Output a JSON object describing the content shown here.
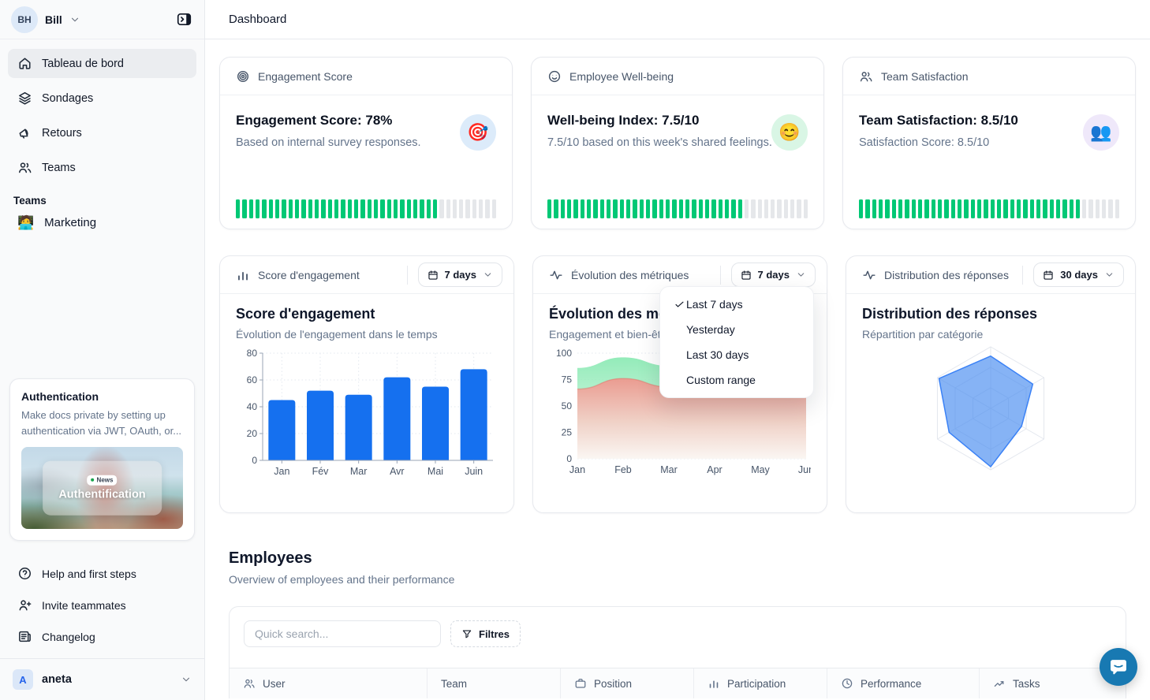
{
  "topbar": {
    "title": "Dashboard"
  },
  "sidebar": {
    "user": {
      "initials": "BH",
      "name": "Bill"
    },
    "nav": [
      {
        "label": "Tableau de bord",
        "icon": "home",
        "active": true
      },
      {
        "label": "Sondages",
        "icon": "layers",
        "active": false
      },
      {
        "label": "Retours",
        "icon": "megaphone",
        "active": false
      },
      {
        "label": "Teams",
        "icon": "users",
        "active": false
      }
    ],
    "section_label": "Teams",
    "teams": [
      {
        "label": "Marketing",
        "emoji": "🧑‍💻"
      }
    ],
    "promo": {
      "title": "Authentication",
      "body": "Make docs private by setting up authentication via JWT, OAuth, or...",
      "badge": "News",
      "caption": "Authentification"
    },
    "footer_nav": [
      {
        "label": "Help and first steps",
        "icon": "help"
      },
      {
        "label": "Invite teammates",
        "icon": "user-plus"
      },
      {
        "label": "Changelog",
        "icon": "changelog"
      }
    ],
    "workspace": {
      "initial": "A",
      "name": "aneta"
    }
  },
  "stat_cards": [
    {
      "header": "Engagement Score",
      "header_icon": "target",
      "title": "Engagement Score: 78%",
      "subtitle": "Based on internal survey responses.",
      "emoji": "🎯",
      "emoji_bg": "#dcebfa",
      "progress": 78
    },
    {
      "header": "Employee Well-being",
      "header_icon": "smile",
      "title": "Well-being Index: 7.5/10",
      "subtitle": "7.5/10 based on this week's shared feelings.",
      "emoji": "😊",
      "emoji_bg": "#d9f6e5",
      "progress": 75
    },
    {
      "header": "Team Satisfaction",
      "header_icon": "users",
      "title": "Team Satisfaction: 8.5/10",
      "subtitle": "Satisfaction Score: 8.5/10",
      "emoji": "👥",
      "emoji_bg": "#efe8fa",
      "progress": 85
    }
  ],
  "progress_color": "#00c875",
  "progress_track_color": "#e5e7ea",
  "chart_cards": [
    {
      "header": "Score d'engagement",
      "header_icon": "bar-chart",
      "range": "7 days",
      "title": "Score d'engagement",
      "subtitle": "Évolution de l'engagement dans le temps"
    },
    {
      "header": "Évolution des métriques",
      "header_icon": "activity",
      "range": "7 days",
      "title": "Évolution des métriques",
      "subtitle": "Engagement et bien-être"
    },
    {
      "header": "Distribution des réponses",
      "header_icon": "activity",
      "range": "30 days",
      "title": "Distribution des réponses",
      "subtitle": "Répartition par catégorie"
    }
  ],
  "dropdown_menu": {
    "items": [
      {
        "label": "Last 7 days",
        "checked": true
      },
      {
        "label": "Yesterday",
        "checked": false
      },
      {
        "label": "Last 30 days",
        "checked": false
      },
      {
        "label": "Custom range",
        "checked": false
      }
    ]
  },
  "chart_data": [
    {
      "type": "bar",
      "title": "Score d'engagement",
      "categories": [
        "Jan",
        "Fév",
        "Mar",
        "Avr",
        "Mai",
        "Juin"
      ],
      "values": [
        45,
        52,
        49,
        62,
        55,
        68
      ],
      "ylim": [
        0,
        80
      ],
      "yticks": [
        0,
        20,
        40,
        60,
        80
      ],
      "bar_color": "#1570EF",
      "grid": true
    },
    {
      "type": "area",
      "title": "Évolution des métriques",
      "x": [
        "Jan",
        "Feb",
        "Mar",
        "Apr",
        "May",
        "Jun"
      ],
      "series": [
        {
          "name": "engagement",
          "color": "#8deab5",
          "values": [
            86,
            96,
            88,
            67,
            72,
            75
          ]
        },
        {
          "name": "bien-être",
          "color": "#f0988f",
          "values": [
            66,
            76,
            68,
            60,
            66,
            62
          ]
        }
      ],
      "ylim": [
        0,
        100
      ],
      "yticks": [
        0,
        25,
        50,
        75,
        100
      ],
      "grid": true
    },
    {
      "type": "radar",
      "title": "Distribution des réponses",
      "axes": 6,
      "values": [
        0.85,
        0.79,
        0.58,
        0.95,
        0.78,
        0.97
      ],
      "max": 1,
      "fill_color": "#3b82f6",
      "web_color": "#e3e7ee"
    }
  ],
  "employees": {
    "title": "Employees",
    "subtitle": "Overview of employees and their performance",
    "search_placeholder": "Quick search...",
    "filter_label": "Filtres",
    "table_columns": [
      {
        "label": "User",
        "icon": "users"
      },
      {
        "label": "Team",
        "icon": ""
      },
      {
        "label": "Position",
        "icon": "briefcase"
      },
      {
        "label": "Participation",
        "icon": "bar-chart"
      },
      {
        "label": "Performance",
        "icon": "clock"
      },
      {
        "label": "Tasks",
        "icon": "trend"
      }
    ]
  }
}
